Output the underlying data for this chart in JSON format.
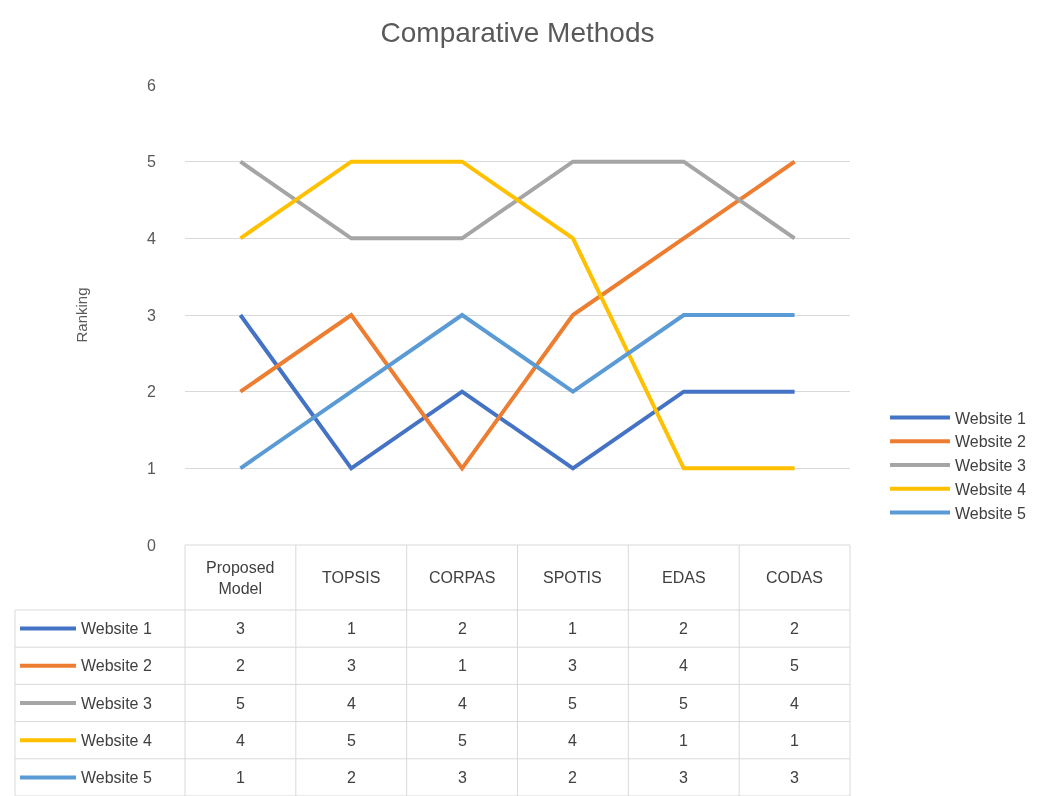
{
  "chart_data": {
    "type": "line",
    "title": "Comparative Methods",
    "ylabel": "Ranking",
    "categories": [
      "Proposed Model",
      "TOPSIS",
      "CORPAS",
      "SPOTIS",
      "EDAS",
      "CODAS"
    ],
    "series": [
      {
        "name": "Website 1",
        "color": "#4472c4",
        "values": [
          3,
          1,
          2,
          1,
          2,
          2
        ]
      },
      {
        "name": "Website 2",
        "color": "#ed7d31",
        "values": [
          2,
          3,
          1,
          3,
          4,
          5
        ]
      },
      {
        "name": "Website 3",
        "color": "#a5a5a5",
        "values": [
          5,
          4,
          4,
          5,
          5,
          4
        ]
      },
      {
        "name": "Website 4",
        "color": "#ffc000",
        "values": [
          4,
          5,
          5,
          4,
          1,
          1
        ]
      },
      {
        "name": "Website 5",
        "color": "#5b9bd5",
        "values": [
          1,
          2,
          3,
          2,
          3,
          3
        ]
      }
    ],
    "ylim": [
      0,
      6
    ],
    "yticks": [
      0,
      1,
      2,
      3,
      4,
      5,
      6
    ],
    "grid": "y",
    "legend": "right",
    "marker": "none",
    "line_style": "solid",
    "data_labels": true
  }
}
